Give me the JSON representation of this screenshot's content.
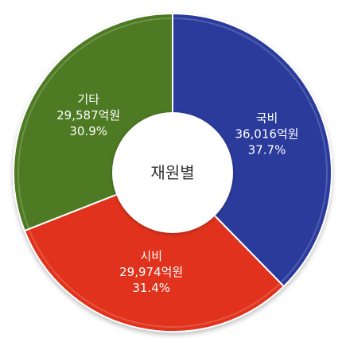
{
  "chart_data": {
    "type": "pie",
    "center_label": "재원별",
    "slices": [
      {
        "name": "국비",
        "amount_label": "36,016억원",
        "value": 36016,
        "percent_label": "37.7%",
        "color": "#2a3a9c"
      },
      {
        "name": "시비",
        "amount_label": "29,974억원",
        "value": 29974,
        "percent_label": "31.4%",
        "color": "#e0321a"
      },
      {
        "name": "기타",
        "amount_label": "29,587억원",
        "value": 29587,
        "percent_label": "30.9%",
        "color": "#4e7a22"
      }
    ],
    "legend": "none",
    "labels_inside": true
  }
}
